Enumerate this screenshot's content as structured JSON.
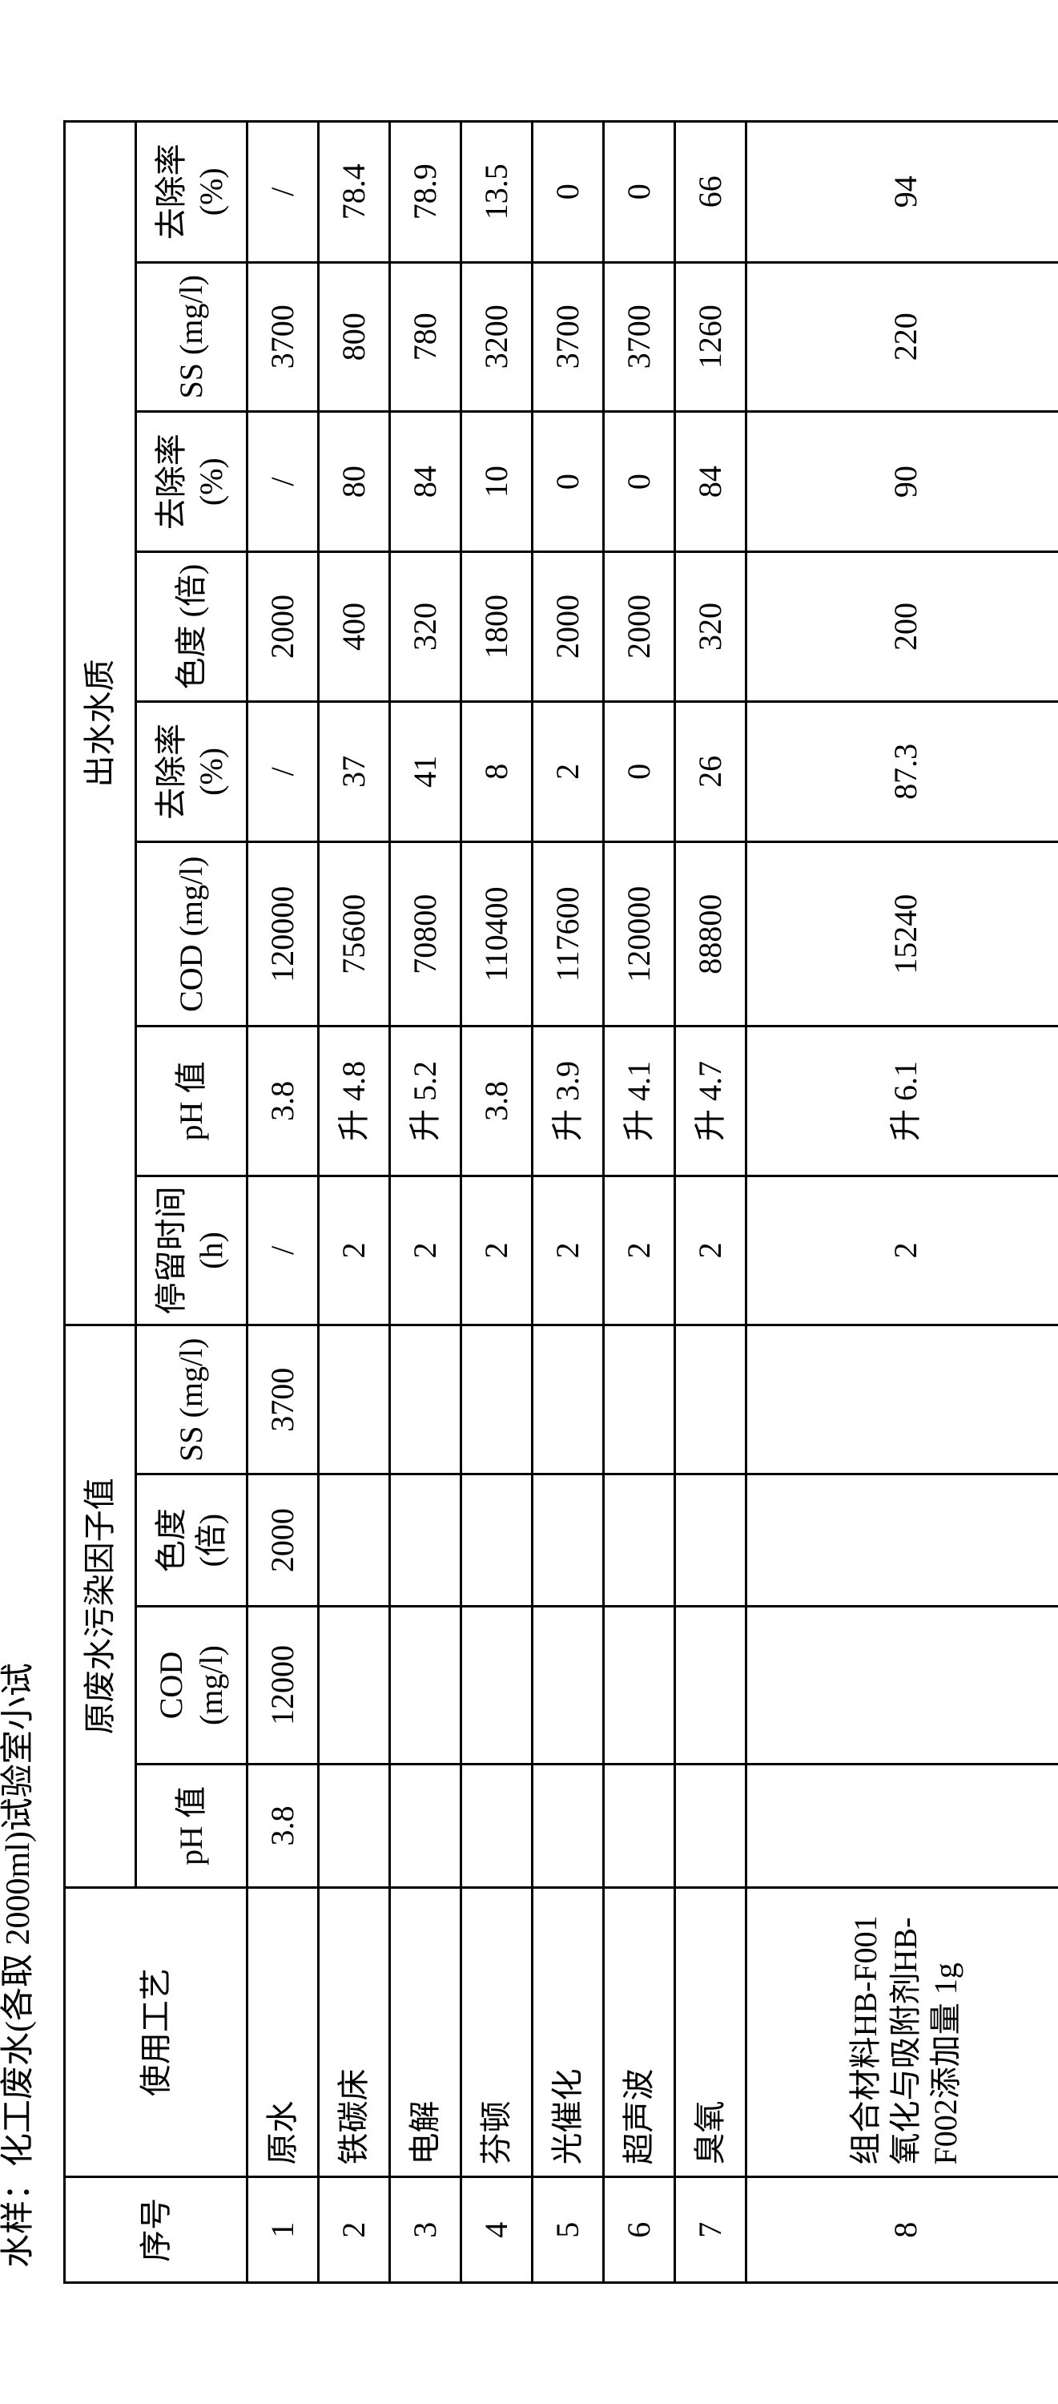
{
  "caption": "水样：化工废水(各取 2000ml)试验室小试",
  "headers": {
    "seq": "序号",
    "proc": "使用工艺",
    "group_raw": "原废水污染因子值",
    "group_out": "出水水质",
    "ph1": "pH 值",
    "cod1": "COD (mg/l)",
    "chro1": "色度 (倍)",
    "ss1": "SS (mg/l)",
    "rt": "停留时间(h)",
    "ph2": "pH 值",
    "cod2": "COD (mg/l)",
    "rr1": "去除率 (%)",
    "chro2": "色度 (倍)",
    "rr2": "去除率 (%)",
    "ss2": "SS (mg/l)",
    "rr3": "去除率 (%)"
  },
  "rows": [
    {
      "seq": "1",
      "proc": "原水",
      "ph1": "3.8",
      "cod1": "12000",
      "chro1": "2000",
      "ss1": "3700",
      "rt": "/",
      "ph2": "3.8",
      "cod2": "120000",
      "rr1": "/",
      "chro2": "2000",
      "rr2": "/",
      "ss2": "3700",
      "rr3": "/"
    },
    {
      "seq": "2",
      "proc": "铁碳床",
      "ph1": "",
      "cod1": "",
      "chro1": "",
      "ss1": "",
      "rt": "2",
      "ph2": "升 4.8",
      "cod2": "75600",
      "rr1": "37",
      "chro2": "400",
      "rr2": "80",
      "ss2": "800",
      "rr3": "78.4"
    },
    {
      "seq": "3",
      "proc": "电解",
      "ph1": "",
      "cod1": "",
      "chro1": "",
      "ss1": "",
      "rt": "2",
      "ph2": "升 5.2",
      "cod2": "70800",
      "rr1": "41",
      "chro2": "320",
      "rr2": "84",
      "ss2": "780",
      "rr3": "78.9"
    },
    {
      "seq": "4",
      "proc": "芬顿",
      "ph1": "",
      "cod1": "",
      "chro1": "",
      "ss1": "",
      "rt": "2",
      "ph2": "3.8",
      "cod2": "110400",
      "rr1": "8",
      "chro2": "1800",
      "rr2": "10",
      "ss2": "3200",
      "rr3": "13.5"
    },
    {
      "seq": "5",
      "proc": "光催化",
      "ph1": "",
      "cod1": "",
      "chro1": "",
      "ss1": "",
      "rt": "2",
      "ph2": "升 3.9",
      "cod2": "117600",
      "rr1": "2",
      "chro2": "2000",
      "rr2": "0",
      "ss2": "3700",
      "rr3": "0"
    },
    {
      "seq": "6",
      "proc": "超声波",
      "ph1": "",
      "cod1": "",
      "chro1": "",
      "ss1": "",
      "rt": "2",
      "ph2": "升 4.1",
      "cod2": "120000",
      "rr1": "0",
      "chro2": "2000",
      "rr2": "0",
      "ss2": "3700",
      "rr3": "0"
    },
    {
      "seq": "7",
      "proc": "臭氧",
      "ph1": "",
      "cod1": "",
      "chro1": "",
      "ss1": "",
      "rt": "2",
      "ph2": "升 4.7",
      "cod2": "88800",
      "rr1": "26",
      "chro2": "320",
      "rr2": "84",
      "ss2": "1260",
      "rr3": "66"
    },
    {
      "seq": "8",
      "proc": "组合材料HB-F001氧化与吸附剂HB-F002添加量 1g",
      "ph1": "",
      "cod1": "",
      "chro1": "",
      "ss1": "",
      "rt": "2",
      "ph2": "升 6.1",
      "cod2": "15240",
      "rr1": "87.3",
      "chro2": "200",
      "rr2": "90",
      "ss2": "220",
      "rr3": "94"
    }
  ]
}
